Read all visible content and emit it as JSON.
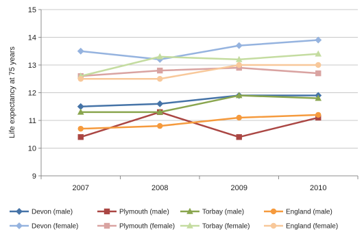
{
  "chart_data": {
    "type": "line",
    "title": "",
    "xlabel": "",
    "ylabel": "Life expectancy at 75 years",
    "categories": [
      "2007",
      "2008",
      "2009",
      "2010"
    ],
    "ylim": [
      9,
      15
    ],
    "yticks": [
      "9",
      "10",
      "11",
      "12",
      "13",
      "14",
      "15"
    ],
    "grid": "horizontal",
    "legend_position": "bottom",
    "series": [
      {
        "name": "Devon (male)",
        "color": "#4573A7",
        "marker": "diamond",
        "values": [
          11.5,
          11.6,
          11.9,
          11.9
        ]
      },
      {
        "name": "Plymouth (male)",
        "color": "#AA4643",
        "marker": "square",
        "values": [
          10.4,
          11.3,
          10.4,
          11.1
        ]
      },
      {
        "name": "Torbay (male)",
        "color": "#89A54E",
        "marker": "triangle",
        "values": [
          11.3,
          11.3,
          11.9,
          11.8
        ]
      },
      {
        "name": "England (male)",
        "color": "#F59A3D",
        "marker": "circle",
        "values": [
          10.7,
          10.8,
          11.1,
          11.2
        ]
      },
      {
        "name": "Devon (female)",
        "color": "#95B3DF",
        "marker": "diamond",
        "values": [
          13.5,
          13.2,
          13.7,
          13.9
        ]
      },
      {
        "name": "Plymouth (female)",
        "color": "#D9A3A1",
        "marker": "square",
        "values": [
          12.6,
          12.8,
          12.9,
          12.7
        ]
      },
      {
        "name": "Torbay (female)",
        "color": "#C4DCA0",
        "marker": "triangle",
        "values": [
          12.6,
          13.3,
          13.2,
          13.4
        ]
      },
      {
        "name": "England (female)",
        "color": "#F8C89A",
        "marker": "circle",
        "values": [
          12.5,
          12.5,
          13.0,
          13.0
        ]
      }
    ]
  }
}
